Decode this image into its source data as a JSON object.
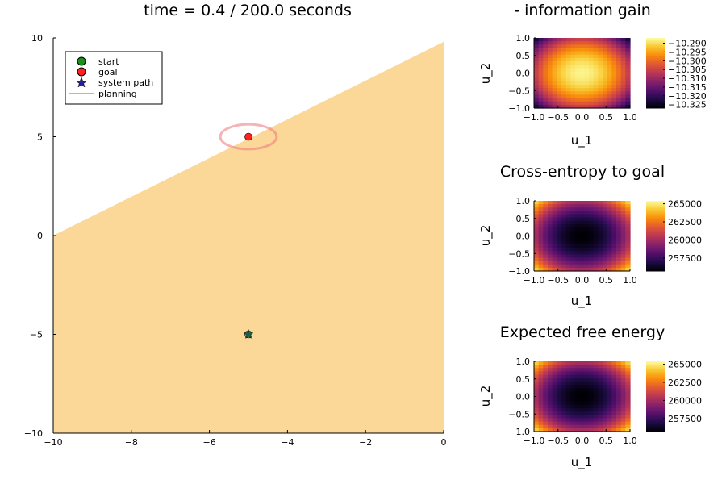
{
  "colors": {
    "background": "#ffffff",
    "planning": "#f8b031",
    "path_ellipse": "#f08080",
    "start": "#1a8f1a",
    "goal": "#ff2020",
    "system_path": "#2020a0"
  },
  "chart_data": [
    {
      "type": "scatter",
      "title": "time = 0.4 / 200.0 seconds",
      "xlabel": "",
      "ylabel": "",
      "xlim": [
        -10,
        0
      ],
      "ylim": [
        -10,
        10
      ],
      "xticks": [
        -10,
        -8,
        -6,
        -4,
        -2,
        0
      ],
      "yticks": [
        -10,
        -5,
        0,
        5,
        10
      ],
      "xtick_labels": [
        "−10",
        "−8",
        "−6",
        "−4",
        "−2",
        "0"
      ],
      "ytick_labels": [
        "−10",
        "−5",
        "0",
        "5",
        "10"
      ],
      "grid": false,
      "legend": {
        "placement": "top-left",
        "entries": [
          "start",
          "goal",
          "system path",
          "planning"
        ]
      },
      "start": {
        "x": -5,
        "y": -5
      },
      "goal": {
        "x": -5,
        "y": 5
      },
      "system_path": [
        {
          "x": -5,
          "y": -5
        }
      ],
      "planning_region": [
        [
          -10,
          0
        ],
        [
          0,
          9.8
        ],
        [
          0,
          -10
        ],
        [
          -10,
          -10
        ]
      ],
      "goal_ellipse": {
        "cx": -5,
        "cy": 5,
        "rx": 0.72,
        "ry": 0.63
      }
    },
    {
      "type": "heatmap",
      "title": "- information gain",
      "xlabel": "u_1",
      "ylabel": "u_2",
      "xlim": [
        -1,
        1
      ],
      "ylim": [
        -1,
        1
      ],
      "xtick_labels": [
        "−1.0",
        "−0.5",
        "0.0",
        "0.5",
        "1.0"
      ],
      "ytick_labels": [
        "−1.0",
        "−0.5",
        "0.0",
        "0.5",
        "1.0"
      ],
      "center_value": -10.288,
      "corner_value": -10.326,
      "colorbar_min": -10.327,
      "colorbar_max": -10.287,
      "colorbar_ticks": [
        -10.29,
        -10.295,
        -10.3,
        -10.305,
        -10.31,
        -10.315,
        -10.32,
        -10.325
      ],
      "colorbar_labels": [
        "−10.290",
        "−10.295",
        "−10.300",
        "−10.305",
        "−10.310",
        "−10.315",
        "−10.320",
        "−10.325"
      ]
    },
    {
      "type": "heatmap",
      "title": "Cross-entropy to goal",
      "xlabel": "u_1",
      "ylabel": "u_2",
      "xlim": [
        -1,
        1
      ],
      "ylim": [
        -1,
        1
      ],
      "xtick_labels": [
        "−1.0",
        "−0.5",
        "0.0",
        "0.5",
        "1.0"
      ],
      "ytick_labels": [
        "−1.0",
        "−0.5",
        "0.0",
        "0.5",
        "1.0"
      ],
      "center_value": 255700,
      "corner_value": 265200,
      "colorbar_min": 255700,
      "colorbar_max": 265400,
      "colorbar_ticks": [
        257500,
        260000,
        262500,
        265000
      ],
      "colorbar_labels": [
        "257500",
        "260000",
        "262500",
        "265000"
      ]
    },
    {
      "type": "heatmap",
      "title": "Expected free energy",
      "xlabel": "u_1",
      "ylabel": "u_2",
      "xlim": [
        -1,
        1
      ],
      "ylim": [
        -1,
        1
      ],
      "xtick_labels": [
        "−1.0",
        "−0.5",
        "0.0",
        "0.5",
        "1.0"
      ],
      "ytick_labels": [
        "−1.0",
        "−0.5",
        "0.0",
        "0.5",
        "1.0"
      ],
      "center_value": 255700,
      "corner_value": 265200,
      "colorbar_min": 255700,
      "colorbar_max": 265400,
      "colorbar_ticks": [
        257500,
        260000,
        262500,
        265000
      ],
      "colorbar_labels": [
        "257500",
        "260000",
        "262500",
        "265000"
      ]
    }
  ]
}
